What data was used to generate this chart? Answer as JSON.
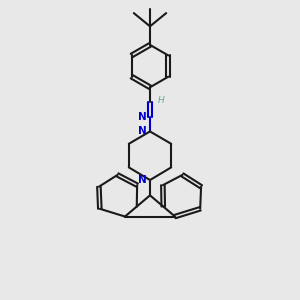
{
  "bg_color": "#e8e8e8",
  "bond_color": "#1a1a1a",
  "N_color": "#0000cc",
  "H_color": "#5aaa9a",
  "line_width": 1.5,
  "figsize": [
    3.0,
    3.0
  ],
  "dpi": 100,
  "xlim": [
    0,
    10
  ],
  "ylim": [
    0,
    10
  ]
}
